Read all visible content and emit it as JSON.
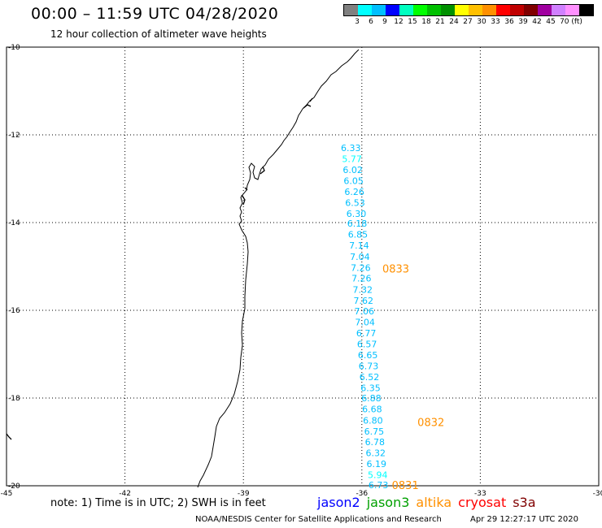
{
  "header": {
    "title": "00:00 – 11:59 UTC 04/28/2020",
    "subtitle": "12 hour collection of altimeter wave heights"
  },
  "legend": {
    "colors": [
      "#808080",
      "#00ffff",
      "#00bfff",
      "#0000ff",
      "#00ffc0",
      "#00ff00",
      "#00c000",
      "#009000",
      "#ffff00",
      "#ffc000",
      "#ff9000",
      "#ff0000",
      "#c00000",
      "#800000",
      "#a000a0",
      "#d080ff",
      "#ff90ff",
      "#000000"
    ],
    "labels": [
      "3",
      "6",
      "9",
      "12",
      "15",
      "18",
      "21",
      "24",
      "27",
      "30",
      "33",
      "36",
      "39",
      "42",
      "45",
      "70 (ft)"
    ]
  },
  "map": {
    "lon_ticks": [
      "-45",
      "-42",
      "-39",
      "-36",
      "-33",
      "-30"
    ],
    "lat_ticks": [
      "-10",
      "-12",
      "-14",
      "-16",
      "-18",
      "-20"
    ],
    "lon_range": [
      -45,
      -30
    ],
    "lat_range": [
      -10,
      -20
    ]
  },
  "observations": [
    {
      "lon": -36.28,
      "lat": -12.3,
      "value": "6.33",
      "color": "#00bfff"
    },
    {
      "lon": -36.25,
      "lat": -12.55,
      "value": "5.77",
      "color": "#00ffff"
    },
    {
      "lon": -36.23,
      "lat": -12.8,
      "value": "6.02",
      "color": "#00bfff"
    },
    {
      "lon": -36.21,
      "lat": -13.05,
      "value": "6.05",
      "color": "#00bfff"
    },
    {
      "lon": -36.19,
      "lat": -13.3,
      "value": "6.26",
      "color": "#00bfff"
    },
    {
      "lon": -36.17,
      "lat": -13.55,
      "value": "6.53",
      "color": "#00bfff"
    },
    {
      "lon": -36.14,
      "lat": -13.8,
      "value": "6.30",
      "color": "#00bfff"
    },
    {
      "lon": -36.12,
      "lat": -14.02,
      "value": "6.18",
      "color": "#00bfff"
    },
    {
      "lon": -36.1,
      "lat": -14.27,
      "value": "6.85",
      "color": "#00bfff"
    },
    {
      "lon": -36.07,
      "lat": -14.52,
      "value": "7.14",
      "color": "#00bfff"
    },
    {
      "lon": -36.05,
      "lat": -14.78,
      "value": "7.04",
      "color": "#00bfff"
    },
    {
      "lon": -36.03,
      "lat": -15.03,
      "value": "7.26",
      "color": "#00bfff"
    },
    {
      "lon": -36.01,
      "lat": -15.27,
      "value": "7.26",
      "color": "#00bfff"
    },
    {
      "lon": -35.98,
      "lat": -15.53,
      "value": "7.32",
      "color": "#00bfff"
    },
    {
      "lon": -35.96,
      "lat": -15.78,
      "value": "7.62",
      "color": "#00bfff"
    },
    {
      "lon": -35.94,
      "lat": -16.02,
      "value": "7.06",
      "color": "#00bfff"
    },
    {
      "lon": -35.92,
      "lat": -16.27,
      "value": "7.04",
      "color": "#00bfff"
    },
    {
      "lon": -35.89,
      "lat": -16.52,
      "value": "6.77",
      "color": "#00bfff"
    },
    {
      "lon": -35.87,
      "lat": -16.77,
      "value": "6.57",
      "color": "#00bfff"
    },
    {
      "lon": -35.85,
      "lat": -17.02,
      "value": "6.65",
      "color": "#00bfff"
    },
    {
      "lon": -35.83,
      "lat": -17.27,
      "value": "6.73",
      "color": "#00bfff"
    },
    {
      "lon": -35.81,
      "lat": -17.52,
      "value": "6.52",
      "color": "#00bfff"
    },
    {
      "lon": -35.78,
      "lat": -17.77,
      "value": "6.35",
      "color": "#00bfff"
    },
    {
      "lon": -35.76,
      "lat": -18.0,
      "value": "6.88",
      "color": "#00bfff"
    },
    {
      "lon": -35.74,
      "lat": -18.25,
      "value": "6.68",
      "color": "#00bfff"
    },
    {
      "lon": -35.72,
      "lat": -18.51,
      "value": "6.80",
      "color": "#00bfff"
    },
    {
      "lon": -35.69,
      "lat": -18.76,
      "value": "6.75",
      "color": "#00bfff"
    },
    {
      "lon": -35.67,
      "lat": -19.0,
      "value": "6.78",
      "color": "#00bfff"
    },
    {
      "lon": -35.65,
      "lat": -19.25,
      "value": "6.32",
      "color": "#00bfff"
    },
    {
      "lon": -35.63,
      "lat": -19.5,
      "value": "6.19",
      "color": "#00bfff"
    },
    {
      "lon": -35.6,
      "lat": -19.75,
      "value": "5.94",
      "color": "#00ffff"
    },
    {
      "lon": -35.58,
      "lat": -19.98,
      "value": "6.73",
      "color": "#00bfff"
    }
  ],
  "pass_labels": [
    {
      "lon": -35.14,
      "lat": -15.05,
      "text": "0833",
      "color": "#ff9000"
    },
    {
      "lon": -34.25,
      "lat": -18.55,
      "text": "0832",
      "color": "#ff9000"
    },
    {
      "lon": -34.9,
      "lat": -19.98,
      "text": "0831",
      "color": "#ff9000"
    }
  ],
  "footer": {
    "note": "note: 1) Time is in UTC; 2) SWH is in feet",
    "satellites": [
      {
        "name": "jason2",
        "color": "#0000ff"
      },
      {
        "name": "jason3",
        "color": "#00a000"
      },
      {
        "name": "altika",
        "color": "#ff9000"
      },
      {
        "name": "cryosat",
        "color": "#ff0000"
      },
      {
        "name": "s3a",
        "color": "#800000"
      }
    ],
    "credit": "NOAA/NESDIS Center for Satellite Applications and Research",
    "timestamp": "Apr 29 12:27:17 UTC 2020"
  }
}
